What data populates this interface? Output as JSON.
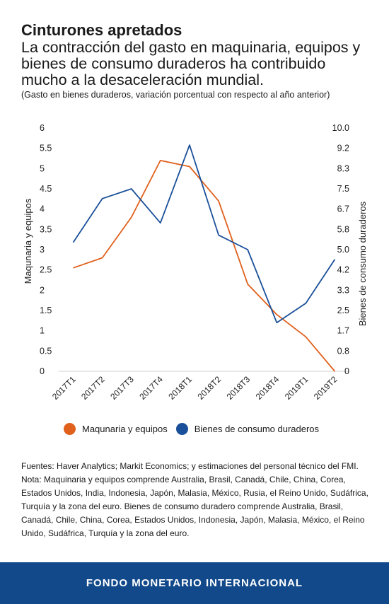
{
  "title": "Cinturones apretados",
  "subtitle": "La contracción del gasto en maquinaria, equipos y bienes de consumo duraderos ha contribuido mucho a la desaceleración mundial.",
  "note": "(Gasto en bienes duraderos, variación porcentual con respecto al año anterior)",
  "sources": "Fuentes: Haver Analytics; Markit Economics; y estimaciones del personal técnico del FMI.",
  "nota": "Nota: Maquinaria y equipos comprende Australia, Brasil, Canadá, Chile, China, Corea, Estados Unidos, India, Indonesia, Japón, Malasia, México, Rusia, el Reino Unido, Sudáfrica, Turquía y la zona del euro. Bienes de consumo duradero comprende Australia, Brasil, Canadá, Chile, China, Corea, Estados Unidos, Indonesia, Japón, Malasia, México, el Reino Unido, Sudáfrica, Turquía y la zona del euro.",
  "footer": "FONDO MONETARIO INTERNACIONAL",
  "chart_data": {
    "type": "line",
    "categories": [
      "2017T1",
      "2017T2",
      "2017T3",
      "2017T4",
      "2018T1",
      "2018T2",
      "2018T3",
      "2018T4",
      "2019T1",
      "2019T2"
    ],
    "ylabel": "Maqunaria y equipos",
    "y2label": "Bienes de consumo duraderos",
    "ylim": [
      0,
      6
    ],
    "y2lim": [
      0,
      10
    ],
    "yticks": [
      "0",
      "0.5",
      "1",
      "1.5",
      "2",
      "2.5",
      "3",
      "3.5",
      "4",
      "4.5",
      "5",
      "5.5",
      "6"
    ],
    "y2ticks": [
      "0",
      "0.8",
      "1.7",
      "2.5",
      "3.3",
      "4.2",
      "5.0",
      "5.8",
      "6.7",
      "7.5",
      "8.3",
      "9.2",
      "10.0"
    ],
    "series": [
      {
        "name": "Maqunaria y equipos",
        "axis": "left",
        "color": "#e0601c",
        "values": [
          2.55,
          2.8,
          3.8,
          5.2,
          5.05,
          4.2,
          2.15,
          1.4,
          0.85,
          0.0
        ]
      },
      {
        "name": "Bienes de consumo duraderos",
        "axis": "right",
        "color": "#1a4f99",
        "values": [
          5.3,
          7.1,
          7.5,
          6.1,
          9.3,
          5.6,
          5.0,
          2.0,
          2.8,
          4.6
        ]
      }
    ],
    "grid": false,
    "legend": "bottom"
  }
}
